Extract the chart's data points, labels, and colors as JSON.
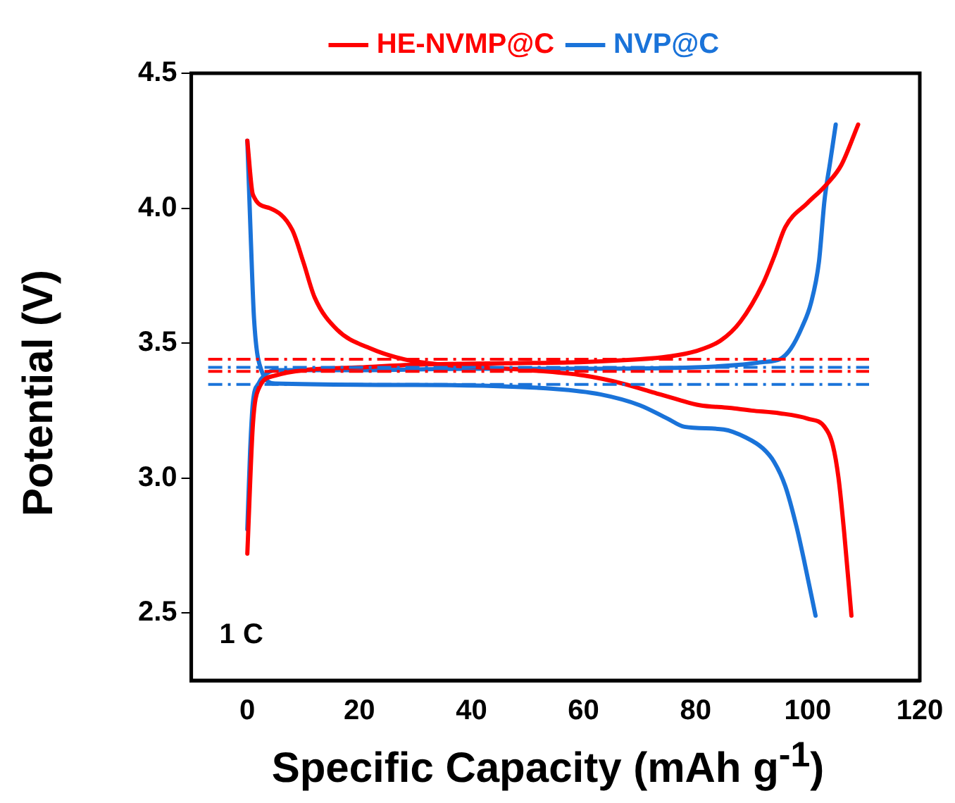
{
  "chart_data": {
    "type": "line",
    "xlabel": "Specific Capacity (mAh g$^{-1}$)",
    "ylabel": "Potential (V)",
    "xlim": [
      -10,
      120
    ],
    "xticks": [
      0,
      20,
      40,
      60,
      80,
      100,
      120
    ],
    "ylim": [
      2.25,
      4.5
    ],
    "yticks": [
      {
        "value": 2.5,
        "label": "2.5"
      },
      {
        "value": 3,
        "label": "3.0"
      },
      {
        "value": 3.5,
        "label": "3.5"
      },
      {
        "value": 4,
        "label": "4.0"
      },
      {
        "value": 4.5,
        "label": "4.5"
      }
    ],
    "grid": false,
    "legend": "top",
    "marker": "none",
    "line_style": "solid",
    "annotations": [
      "1 C"
    ],
    "ref_lines": [
      {
        "axis": "y",
        "value": 3.44,
        "color": "#ff0000",
        "line_style": "dashed"
      },
      {
        "axis": "y",
        "value": 3.395,
        "color": "#ff0000",
        "line_style": "dashed"
      },
      {
        "axis": "y",
        "value": 3.41,
        "color": "#1a73d9",
        "line_style": "dashed"
      },
      {
        "axis": "y",
        "value": 3.347,
        "color": "#1a73d9",
        "line_style": "dashed"
      }
    ],
    "series": [
      {
        "name": "HE-NVMP@C",
        "color": "#ff0000",
        "x": [
          0,
          1,
          2,
          5,
          10,
          20,
          30,
          45,
          60,
          70,
          75,
          80,
          84.5,
          88,
          92,
          94,
          96,
          100,
          103,
          106,
          109
        ],
        "values": [
          2.72,
          3.2,
          3.33,
          3.38,
          3.4,
          3.41,
          3.42,
          3.425,
          3.43,
          3.44,
          3.45,
          3.47,
          3.51,
          3.58,
          3.72,
          3.82,
          3.93,
          4.02,
          4.08,
          4.16,
          4.31
        ]
      },
      {
        "color": "#ff0000",
        "x": [
          0,
          1,
          4,
          8,
          10,
          12,
          16,
          22,
          28,
          35,
          50,
          60,
          67,
          72,
          77,
          80.7,
          86,
          90,
          95,
          100,
          103,
          104.5,
          105.5,
          106.5,
          107.8
        ],
        "values": [
          4.25,
          4.05,
          4.0,
          3.92,
          3.8,
          3.67,
          3.55,
          3.48,
          3.44,
          3.42,
          3.4,
          3.38,
          3.35,
          3.32,
          3.29,
          3.27,
          3.26,
          3.25,
          3.24,
          3.22,
          3.19,
          3.12,
          3.0,
          2.8,
          2.49
        ]
      },
      {
        "name": "NVP@C",
        "color": "#1a73d9",
        "x": [
          0,
          0.5,
          1,
          2,
          3,
          5,
          20,
          40,
          60,
          80,
          88,
          92,
          95,
          97,
          99,
          100.6,
          102,
          103,
          104,
          105
        ],
        "values": [
          2.81,
          3.1,
          3.28,
          3.35,
          3.38,
          3.4,
          3.4,
          3.405,
          3.405,
          3.41,
          3.42,
          3.43,
          3.44,
          3.48,
          3.56,
          3.65,
          3.8,
          4.03,
          4.17,
          4.31
        ]
      },
      {
        "color": "#1a73d9",
        "x": [
          0,
          0.6,
          1.2,
          2.5,
          5,
          30,
          55,
          63,
          70,
          75,
          78,
          85,
          89,
          92,
          94,
          96,
          98,
          99.5,
          101.4
        ],
        "values": [
          4.25,
          3.9,
          3.59,
          3.4,
          3.35,
          3.345,
          3.33,
          3.31,
          3.27,
          3.22,
          3.19,
          3.18,
          3.15,
          3.11,
          3.06,
          2.97,
          2.82,
          2.68,
          2.49
        ]
      }
    ]
  }
}
